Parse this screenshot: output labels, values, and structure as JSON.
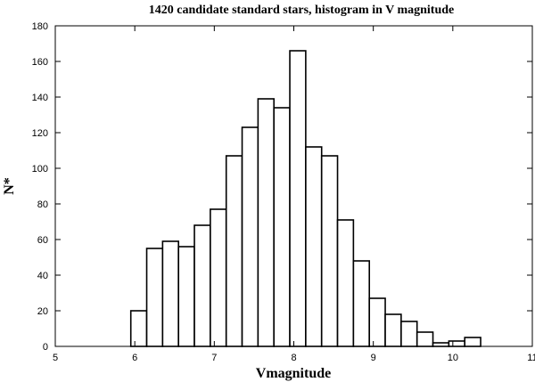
{
  "chart_data": {
    "type": "bar",
    "title": "1420 candidate standard stars,  histogram in V magnitude",
    "xlabel": "Vmagnitude",
    "ylabel": "N*",
    "xlim": [
      5,
      11
    ],
    "ylim": [
      0,
      180
    ],
    "grid": false,
    "x_ticks": [
      "5",
      "6",
      "7",
      "8",
      "9",
      "10",
      "11"
    ],
    "y_ticks": [
      "0",
      "20",
      "40",
      "60",
      "80",
      "100",
      "120",
      "140",
      "160",
      "180"
    ],
    "bins": [
      {
        "from": 5.95,
        "to": 6.15,
        "value": 20
      },
      {
        "from": 6.15,
        "to": 6.35,
        "value": 55
      },
      {
        "from": 6.35,
        "to": 6.55,
        "value": 59
      },
      {
        "from": 6.55,
        "to": 6.75,
        "value": 56
      },
      {
        "from": 6.75,
        "to": 6.95,
        "value": 68
      },
      {
        "from": 6.95,
        "to": 7.15,
        "value": 77
      },
      {
        "from": 7.15,
        "to": 7.35,
        "value": 107
      },
      {
        "from": 7.35,
        "to": 7.55,
        "value": 123
      },
      {
        "from": 7.55,
        "to": 7.75,
        "value": 139
      },
      {
        "from": 7.75,
        "to": 7.95,
        "value": 134
      },
      {
        "from": 7.95,
        "to": 8.15,
        "value": 166
      },
      {
        "from": 8.15,
        "to": 8.35,
        "value": 112
      },
      {
        "from": 8.35,
        "to": 8.55,
        "value": 107
      },
      {
        "from": 8.55,
        "to": 8.75,
        "value": 71
      },
      {
        "from": 8.75,
        "to": 8.95,
        "value": 48
      },
      {
        "from": 8.95,
        "to": 9.15,
        "value": 27
      },
      {
        "from": 9.15,
        "to": 9.35,
        "value": 18
      },
      {
        "from": 9.35,
        "to": 9.55,
        "value": 14
      },
      {
        "from": 9.55,
        "to": 9.75,
        "value": 8
      },
      {
        "from": 9.75,
        "to": 9.95,
        "value": 2
      },
      {
        "from": 9.95,
        "to": 10.15,
        "value": 3
      },
      {
        "from": 10.15,
        "to": 10.35,
        "value": 5
      }
    ]
  }
}
